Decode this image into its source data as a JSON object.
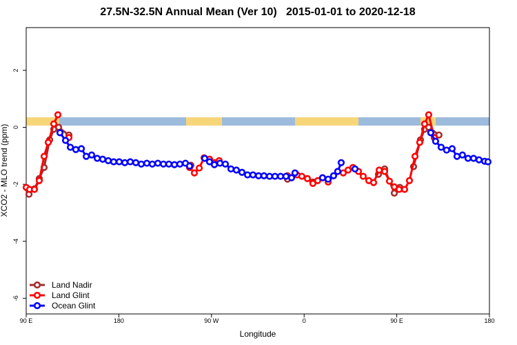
{
  "chart_data": {
    "type": "line",
    "title": "27.5N-32.5N Annual Mean (Ver 10)   2015-01-01 to 2020-12-18",
    "x_label": "Longitude",
    "y_label": "XCO2 - MLO trend (ppm)",
    "xlim": [
      90,
      540
    ],
    "ylim": [
      -6.55,
      3.5
    ],
    "xticks": [
      {
        "value": 90,
        "label": "90 E"
      },
      {
        "value": 180,
        "label": "180"
      },
      {
        "value": 270,
        "label": "90 W"
      },
      {
        "value": 360,
        "label": "0"
      },
      {
        "value": 450,
        "label": "90 E"
      },
      {
        "value": 540,
        "label": "180"
      }
    ],
    "yticks": [
      -6,
      -4,
      -2,
      0,
      2
    ],
    "legend": "bottom-left",
    "series": [
      {
        "name": "Land Nadir",
        "color": "#a52a2a",
        "x": [
          92.7,
          98,
          102.7,
          107.4,
          112.8,
          116.8,
          121.5,
          131.5,
          250,
          267.4,
          277.5,
          343.8,
          368.5,
          432.2,
          438.2,
          447.6,
          453,
          466.3,
          473,
          477,
          481,
          491
        ],
        "values": [
          -2.35,
          -2.16,
          -1.8,
          -1.41,
          -0.44,
          -0.07,
          0,
          -0.27,
          -1.33,
          -1.14,
          -1.21,
          -1.82,
          -1.92,
          -1.65,
          -1.46,
          -2.31,
          -2.11,
          -1.38,
          -0.44,
          -0.07,
          0,
          -0.27
        ]
      },
      {
        "name": "Land Glint",
        "color": "#ff0000",
        "x": [
          90,
          93.3,
          98,
          102.7,
          107.4,
          111.4,
          116.8,
          120.8,
          131.5,
          248.7,
          253.4,
          258.1,
          262.8,
          268.1,
          272.8,
          277.5,
          343.8,
          353.1,
          357.8,
          363.2,
          368.5,
          373.2,
          377.9,
          383.3,
          392.6,
          398,
          402.7,
          407.4,
          412.8,
          417.4,
          422.8,
          427.5,
          432.9,
          438.2,
          442.9,
          447.6,
          452.3,
          457.6,
          462.3,
          467.7,
          472.3,
          477,
          481,
          486.4
        ],
        "values": [
          -2.11,
          -2.18,
          -2.18,
          -1.87,
          -1.02,
          -0.53,
          0.12,
          0.44,
          -0.36,
          -1.41,
          -1.6,
          -1.43,
          -1.07,
          -1.12,
          -1.24,
          -1.17,
          -1.7,
          -1.67,
          -1.72,
          -1.8,
          -1.97,
          -1.87,
          -1.77,
          -1.92,
          -1.55,
          -1.6,
          -1.5,
          -1.41,
          -1.55,
          -1.72,
          -1.87,
          -1.94,
          -1.5,
          -1.55,
          -1.89,
          -2.09,
          -2.18,
          -2.18,
          -1.87,
          -1.02,
          -0.53,
          0.12,
          0.44,
          -0.36
        ]
      },
      {
        "name": "Ocean Glint",
        "color": "#0000ff",
        "x": [
          122.8,
          128.2,
          132.9,
          138.2,
          143.6,
          148.3,
          153.6,
          159,
          164.3,
          169.7,
          175,
          180.4,
          185.8,
          191.1,
          196.5,
          201.8,
          207.2,
          212.5,
          217.9,
          223.3,
          228.6,
          234,
          239.3,
          244.7,
          248.7,
          263.4,
          268.1,
          272.8,
          278.2,
          283.5,
          288.9,
          294.2,
          299.6,
          305,
          310.3,
          315.7,
          321,
          326.4,
          331.7,
          337.1,
          342.4,
          347.8,
          351.1,
          377.9,
          383.3,
          388.6,
          392.6,
          396,
          409.4,
          483,
          487.7,
          493.1,
          498.4,
          503.8,
          508.5,
          513.8,
          519.2,
          524.6,
          529.9,
          535.3,
          538.6
        ],
        "values": [
          -0.19,
          -0.46,
          -0.7,
          -0.78,
          -0.75,
          -1.02,
          -0.97,
          -1.09,
          -1.12,
          -1.17,
          -1.21,
          -1.21,
          -1.24,
          -1.21,
          -1.24,
          -1.29,
          -1.26,
          -1.29,
          -1.26,
          -1.29,
          -1.29,
          -1.31,
          -1.29,
          -1.26,
          -1.36,
          -1.09,
          -1.21,
          -1.31,
          -1.26,
          -1.29,
          -1.46,
          -1.5,
          -1.58,
          -1.67,
          -1.67,
          -1.7,
          -1.7,
          -1.72,
          -1.72,
          -1.72,
          -1.72,
          -1.77,
          -1.6,
          -1.77,
          -1.82,
          -1.7,
          -1.55,
          -1.24,
          -1.46,
          -0.19,
          -0.49,
          -0.7,
          -0.8,
          -0.75,
          -1.02,
          -0.97,
          -1.09,
          -1.09,
          -1.14,
          -1.19,
          -1.21
        ]
      }
    ]
  }
}
